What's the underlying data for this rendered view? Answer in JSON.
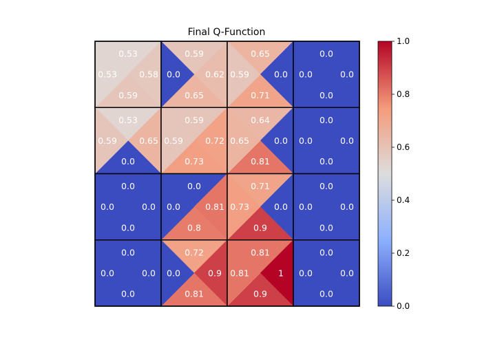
{
  "chart_data": {
    "type": "heatmap",
    "title": "Final Q-Function",
    "grid_rows": 4,
    "grid_cols": 4,
    "value_format": "rounded",
    "colormap": "coolwarm",
    "color_range": [
      0.0,
      1.0
    ],
    "cells": [
      [
        {
          "up": 0.53,
          "left": 0.53,
          "right": 0.58,
          "down": 0.59
        },
        {
          "up": 0.59,
          "left": 0.0,
          "right": 0.62,
          "down": 0.65
        },
        {
          "up": 0.65,
          "left": 0.59,
          "right": 0.0,
          "down": 0.71
        },
        {
          "up": 0.0,
          "left": 0.0,
          "right": 0.0,
          "down": 0.0
        }
      ],
      [
        {
          "up": 0.53,
          "left": 0.59,
          "right": 0.65,
          "down": 0.0
        },
        {
          "up": 0.59,
          "left": 0.59,
          "right": 0.72,
          "down": 0.73
        },
        {
          "up": 0.64,
          "left": 0.65,
          "right": 0.0,
          "down": 0.81
        },
        {
          "up": 0.0,
          "left": 0.0,
          "right": 0.0,
          "down": 0.0
        }
      ],
      [
        {
          "up": 0.0,
          "left": 0.0,
          "right": 0.0,
          "down": 0.0
        },
        {
          "up": 0.0,
          "left": 0.0,
          "right": 0.81,
          "down": 0.8
        },
        {
          "up": 0.71,
          "left": 0.73,
          "right": 0.0,
          "down": 0.9
        },
        {
          "up": 0.0,
          "left": 0.0,
          "right": 0.0,
          "down": 0.0
        }
      ],
      [
        {
          "up": 0.0,
          "left": 0.0,
          "right": 0.0,
          "down": 0.0
        },
        {
          "up": 0.72,
          "left": 0.0,
          "right": 0.9,
          "down": 0.81
        },
        {
          "up": 0.81,
          "left": 0.81,
          "right": 1.0,
          "down": 0.9
        },
        {
          "up": 0.0,
          "left": 0.0,
          "right": 0.0,
          "down": 0.0
        }
      ]
    ],
    "colorbar": {
      "ticks": [
        0.0,
        0.2,
        0.4,
        0.6,
        0.8,
        1.0
      ],
      "tick_labels": [
        "0.0",
        "0.2",
        "0.4",
        "0.6",
        "0.8",
        "1.0"
      ],
      "position": "right"
    }
  }
}
